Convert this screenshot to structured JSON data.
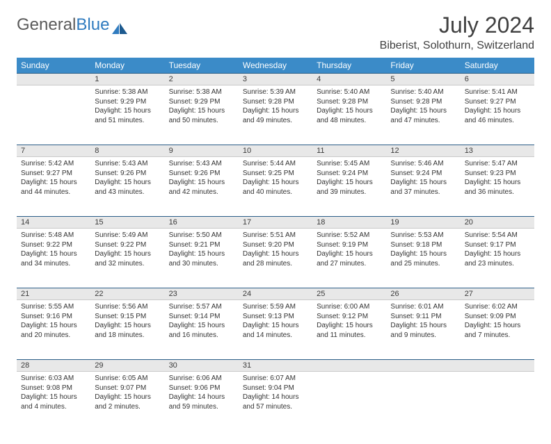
{
  "logo": {
    "text1": "General",
    "text2": "Blue"
  },
  "title": "July 2024",
  "location": "Biberist, Solothurn, Switzerland",
  "colors": {
    "header_bg": "#3b8bc8",
    "header_text": "#ffffff",
    "daynum_bg": "#e8e8e8",
    "daynum_border_top": "#2a5d87",
    "text": "#333333",
    "logo_gray": "#5a5a5a",
    "logo_blue": "#2f7bbf"
  },
  "weekdays": [
    "Sunday",
    "Monday",
    "Tuesday",
    "Wednesday",
    "Thursday",
    "Friday",
    "Saturday"
  ],
  "weeks": [
    {
      "nums": [
        "",
        "1",
        "2",
        "3",
        "4",
        "5",
        "6"
      ],
      "cells": [
        null,
        {
          "sunrise": "Sunrise: 5:38 AM",
          "sunset": "Sunset: 9:29 PM",
          "daylight": "Daylight: 15 hours and 51 minutes."
        },
        {
          "sunrise": "Sunrise: 5:38 AM",
          "sunset": "Sunset: 9:29 PM",
          "daylight": "Daylight: 15 hours and 50 minutes."
        },
        {
          "sunrise": "Sunrise: 5:39 AM",
          "sunset": "Sunset: 9:28 PM",
          "daylight": "Daylight: 15 hours and 49 minutes."
        },
        {
          "sunrise": "Sunrise: 5:40 AM",
          "sunset": "Sunset: 9:28 PM",
          "daylight": "Daylight: 15 hours and 48 minutes."
        },
        {
          "sunrise": "Sunrise: 5:40 AM",
          "sunset": "Sunset: 9:28 PM",
          "daylight": "Daylight: 15 hours and 47 minutes."
        },
        {
          "sunrise": "Sunrise: 5:41 AM",
          "sunset": "Sunset: 9:27 PM",
          "daylight": "Daylight: 15 hours and 46 minutes."
        }
      ]
    },
    {
      "nums": [
        "7",
        "8",
        "9",
        "10",
        "11",
        "12",
        "13"
      ],
      "cells": [
        {
          "sunrise": "Sunrise: 5:42 AM",
          "sunset": "Sunset: 9:27 PM",
          "daylight": "Daylight: 15 hours and 44 minutes."
        },
        {
          "sunrise": "Sunrise: 5:43 AM",
          "sunset": "Sunset: 9:26 PM",
          "daylight": "Daylight: 15 hours and 43 minutes."
        },
        {
          "sunrise": "Sunrise: 5:43 AM",
          "sunset": "Sunset: 9:26 PM",
          "daylight": "Daylight: 15 hours and 42 minutes."
        },
        {
          "sunrise": "Sunrise: 5:44 AM",
          "sunset": "Sunset: 9:25 PM",
          "daylight": "Daylight: 15 hours and 40 minutes."
        },
        {
          "sunrise": "Sunrise: 5:45 AM",
          "sunset": "Sunset: 9:24 PM",
          "daylight": "Daylight: 15 hours and 39 minutes."
        },
        {
          "sunrise": "Sunrise: 5:46 AM",
          "sunset": "Sunset: 9:24 PM",
          "daylight": "Daylight: 15 hours and 37 minutes."
        },
        {
          "sunrise": "Sunrise: 5:47 AM",
          "sunset": "Sunset: 9:23 PM",
          "daylight": "Daylight: 15 hours and 36 minutes."
        }
      ]
    },
    {
      "nums": [
        "14",
        "15",
        "16",
        "17",
        "18",
        "19",
        "20"
      ],
      "cells": [
        {
          "sunrise": "Sunrise: 5:48 AM",
          "sunset": "Sunset: 9:22 PM",
          "daylight": "Daylight: 15 hours and 34 minutes."
        },
        {
          "sunrise": "Sunrise: 5:49 AM",
          "sunset": "Sunset: 9:22 PM",
          "daylight": "Daylight: 15 hours and 32 minutes."
        },
        {
          "sunrise": "Sunrise: 5:50 AM",
          "sunset": "Sunset: 9:21 PM",
          "daylight": "Daylight: 15 hours and 30 minutes."
        },
        {
          "sunrise": "Sunrise: 5:51 AM",
          "sunset": "Sunset: 9:20 PM",
          "daylight": "Daylight: 15 hours and 28 minutes."
        },
        {
          "sunrise": "Sunrise: 5:52 AM",
          "sunset": "Sunset: 9:19 PM",
          "daylight": "Daylight: 15 hours and 27 minutes."
        },
        {
          "sunrise": "Sunrise: 5:53 AM",
          "sunset": "Sunset: 9:18 PM",
          "daylight": "Daylight: 15 hours and 25 minutes."
        },
        {
          "sunrise": "Sunrise: 5:54 AM",
          "sunset": "Sunset: 9:17 PM",
          "daylight": "Daylight: 15 hours and 23 minutes."
        }
      ]
    },
    {
      "nums": [
        "21",
        "22",
        "23",
        "24",
        "25",
        "26",
        "27"
      ],
      "cells": [
        {
          "sunrise": "Sunrise: 5:55 AM",
          "sunset": "Sunset: 9:16 PM",
          "daylight": "Daylight: 15 hours and 20 minutes."
        },
        {
          "sunrise": "Sunrise: 5:56 AM",
          "sunset": "Sunset: 9:15 PM",
          "daylight": "Daylight: 15 hours and 18 minutes."
        },
        {
          "sunrise": "Sunrise: 5:57 AM",
          "sunset": "Sunset: 9:14 PM",
          "daylight": "Daylight: 15 hours and 16 minutes."
        },
        {
          "sunrise": "Sunrise: 5:59 AM",
          "sunset": "Sunset: 9:13 PM",
          "daylight": "Daylight: 15 hours and 14 minutes."
        },
        {
          "sunrise": "Sunrise: 6:00 AM",
          "sunset": "Sunset: 9:12 PM",
          "daylight": "Daylight: 15 hours and 11 minutes."
        },
        {
          "sunrise": "Sunrise: 6:01 AM",
          "sunset": "Sunset: 9:11 PM",
          "daylight": "Daylight: 15 hours and 9 minutes."
        },
        {
          "sunrise": "Sunrise: 6:02 AM",
          "sunset": "Sunset: 9:09 PM",
          "daylight": "Daylight: 15 hours and 7 minutes."
        }
      ]
    },
    {
      "nums": [
        "28",
        "29",
        "30",
        "31",
        "",
        "",
        ""
      ],
      "cells": [
        {
          "sunrise": "Sunrise: 6:03 AM",
          "sunset": "Sunset: 9:08 PM",
          "daylight": "Daylight: 15 hours and 4 minutes."
        },
        {
          "sunrise": "Sunrise: 6:05 AM",
          "sunset": "Sunset: 9:07 PM",
          "daylight": "Daylight: 15 hours and 2 minutes."
        },
        {
          "sunrise": "Sunrise: 6:06 AM",
          "sunset": "Sunset: 9:06 PM",
          "daylight": "Daylight: 14 hours and 59 minutes."
        },
        {
          "sunrise": "Sunrise: 6:07 AM",
          "sunset": "Sunset: 9:04 PM",
          "daylight": "Daylight: 14 hours and 57 minutes."
        },
        null,
        null,
        null
      ]
    }
  ]
}
